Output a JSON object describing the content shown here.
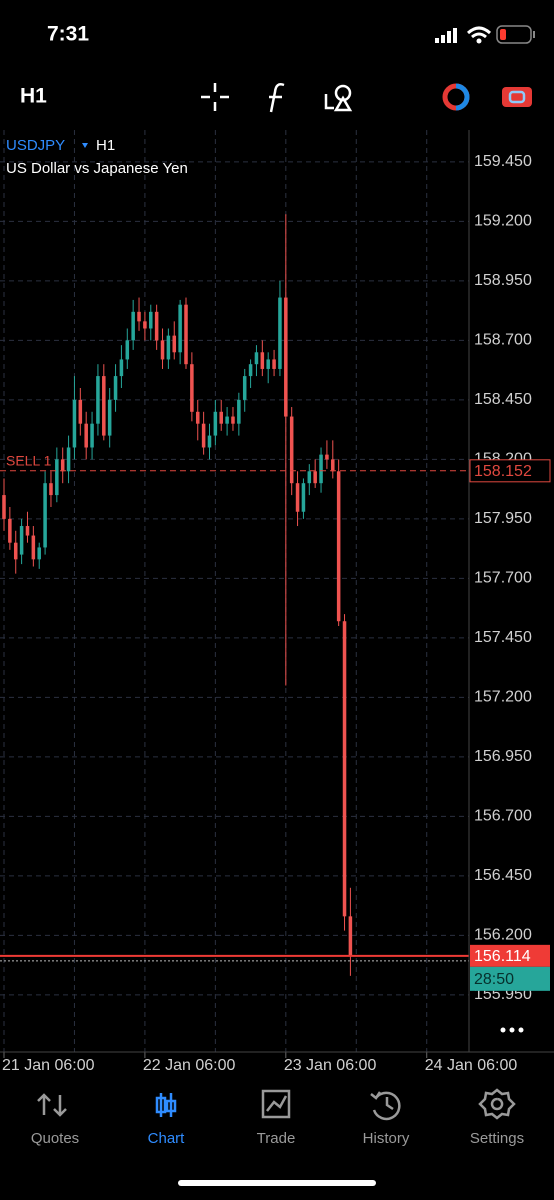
{
  "status_bar": {
    "time": "7:31"
  },
  "toolbar": {
    "timeframe": "H1"
  },
  "chart_data": {
    "type": "candlestick",
    "symbol": "USDJPY",
    "timeframe": "H1",
    "description": "US Dollar vs Japanese Yen",
    "open": [
      158.05,
      157.95,
      157.85,
      157.8,
      157.92,
      157.88,
      157.78,
      157.83,
      158.1,
      158.05,
      158.2,
      158.15,
      158.25,
      158.45,
      158.35,
      158.25,
      158.35,
      158.55,
      158.3,
      158.45,
      158.55,
      158.62,
      158.7,
      158.82,
      158.78,
      158.75,
      158.82,
      158.7,
      158.62,
      158.72,
      158.65,
      158.85,
      158.6,
      158.4,
      158.35,
      158.25,
      158.3,
      158.4,
      158.35,
      158.38,
      158.35,
      158.45,
      158.55,
      158.6,
      158.65,
      158.58,
      158.62,
      158.58,
      158.88,
      158.38,
      158.1,
      157.98,
      158.1,
      158.15,
      158.1,
      158.22,
      158.2,
      158.15,
      157.52,
      156.28
    ],
    "high": [
      158.12,
      158.0,
      157.9,
      157.95,
      157.98,
      157.92,
      157.85,
      158.15,
      158.15,
      158.25,
      158.25,
      158.3,
      158.55,
      158.5,
      158.4,
      158.4,
      158.6,
      158.6,
      158.5,
      158.6,
      158.68,
      158.75,
      158.87,
      158.88,
      158.82,
      158.85,
      158.85,
      158.75,
      158.75,
      158.78,
      158.87,
      158.88,
      158.65,
      158.45,
      158.4,
      158.35,
      158.45,
      158.45,
      158.42,
      158.42,
      158.48,
      158.58,
      158.62,
      158.68,
      158.7,
      158.65,
      158.66,
      158.95,
      159.23,
      158.42,
      158.15,
      158.12,
      158.18,
      158.2,
      158.25,
      158.28,
      158.28,
      158.2,
      157.55,
      156.4
    ],
    "low": [
      157.9,
      157.82,
      157.72,
      157.76,
      157.85,
      157.75,
      157.74,
      157.8,
      158.0,
      158.02,
      158.1,
      158.1,
      158.2,
      158.3,
      158.2,
      158.2,
      158.3,
      158.28,
      158.25,
      158.4,
      158.5,
      158.58,
      158.66,
      158.74,
      158.7,
      158.7,
      158.66,
      158.58,
      158.58,
      158.62,
      158.6,
      158.58,
      158.36,
      158.28,
      158.22,
      158.2,
      158.26,
      158.32,
      158.3,
      158.32,
      158.3,
      158.4,
      158.5,
      158.55,
      158.55,
      158.52,
      158.55,
      158.55,
      157.25,
      158.05,
      157.92,
      157.95,
      158.05,
      158.08,
      158.06,
      158.16,
      158.12,
      157.5,
      156.22,
      156.03
    ],
    "close": [
      157.95,
      157.85,
      157.78,
      157.92,
      157.88,
      157.78,
      157.83,
      158.1,
      158.05,
      158.2,
      158.15,
      158.25,
      158.45,
      158.35,
      158.25,
      158.35,
      158.55,
      158.3,
      158.45,
      158.55,
      158.62,
      158.7,
      158.82,
      158.78,
      158.75,
      158.82,
      158.7,
      158.62,
      158.72,
      158.65,
      158.85,
      158.6,
      158.4,
      158.35,
      158.25,
      158.3,
      158.4,
      158.35,
      158.38,
      158.35,
      158.45,
      158.55,
      158.6,
      158.65,
      158.58,
      158.62,
      158.58,
      158.88,
      158.38,
      158.1,
      157.98,
      158.1,
      158.15,
      158.1,
      158.22,
      158.2,
      158.15,
      157.52,
      156.28,
      156.114
    ],
    "up_color": "#26a69a",
    "down_color": "#ef5350",
    "ylim": [
      155.71,
      159.584
    ],
    "yticks": [
      {
        "value": 155.95,
        "label": "155.950"
      },
      {
        "value": 156.2,
        "label": "156.200"
      },
      {
        "value": 156.45,
        "label": "156.450"
      },
      {
        "value": 156.7,
        "label": "156.700"
      },
      {
        "value": 156.95,
        "label": "156.950"
      },
      {
        "value": 157.2,
        "label": "157.200"
      },
      {
        "value": 157.45,
        "label": "157.450"
      },
      {
        "value": 157.7,
        "label": "157.700"
      },
      {
        "value": 157.95,
        "label": "157.950"
      },
      {
        "value": 158.2,
        "label": "158.200"
      },
      {
        "value": 158.45,
        "label": "158.450"
      },
      {
        "value": 158.7,
        "label": "158.700"
      },
      {
        "value": 158.95,
        "label": "158.950"
      },
      {
        "value": 159.2,
        "label": "159.200"
      },
      {
        "value": 159.45,
        "label": "159.450"
      }
    ],
    "xlim": [
      -0.68,
      79.2
    ],
    "xticks": [
      {
        "value": 0,
        "label": "21 Jan 06:00"
      },
      {
        "value": 24,
        "label": "22 Jan 06:00"
      },
      {
        "value": 48,
        "label": "23 Jan 06:00"
      },
      {
        "value": 72,
        "label": "24 Jan 06:00"
      }
    ],
    "grid": true,
    "sell_order": {
      "label": "SELL 1",
      "price": 158.152
    },
    "bid": 156.114,
    "countdown": "28:50"
  },
  "tab_bar": {
    "tabs": [
      "Quotes",
      "Chart",
      "Trade",
      "History",
      "Settings"
    ],
    "active_tab": 1
  }
}
